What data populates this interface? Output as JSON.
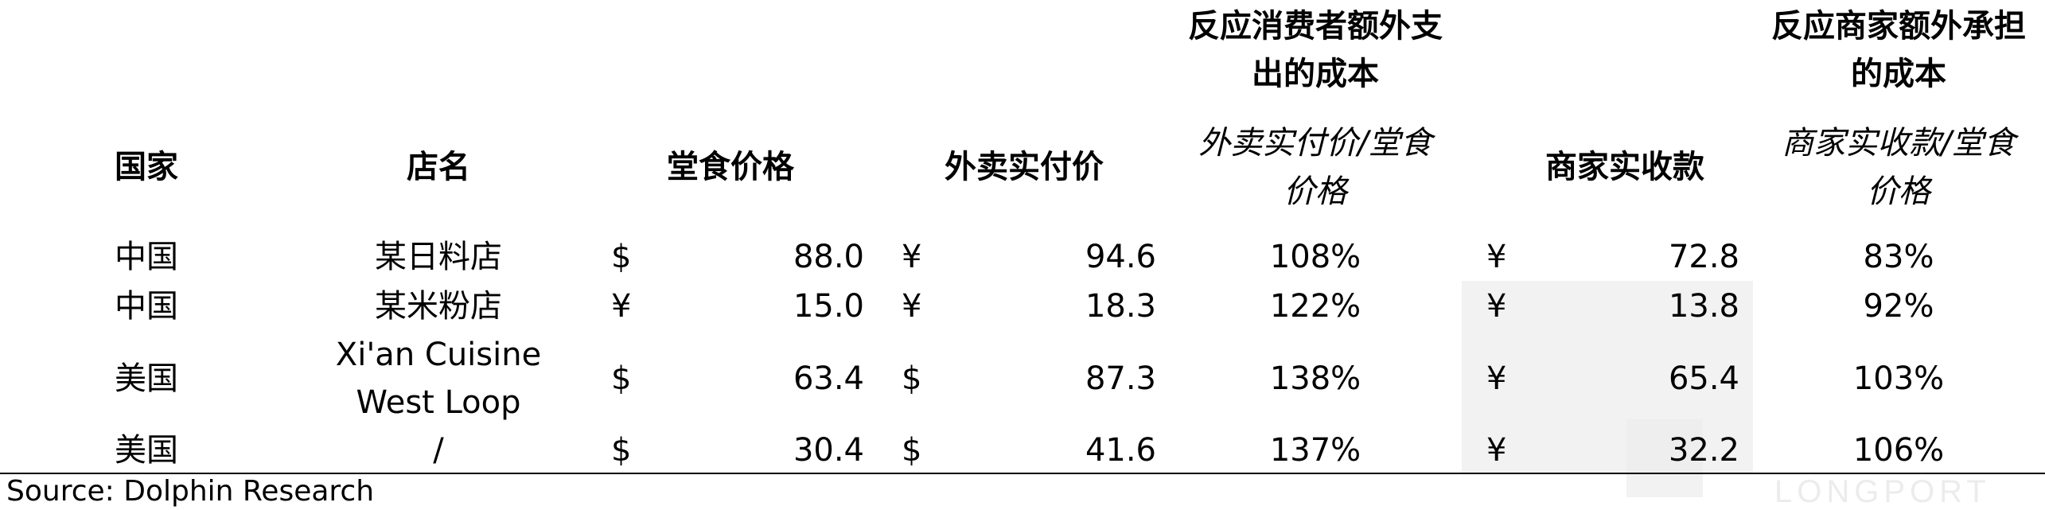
{
  "group_headers": {
    "consumer": [
      "反应消费者额外支",
      "出的成本"
    ],
    "merchant": [
      "反应商家额外承担",
      "的成本"
    ]
  },
  "columns": {
    "country": "国家",
    "store": "店名",
    "dine_in_price": "堂食价格",
    "delivery_paid": "外卖实付价",
    "ratio_consumer": [
      "外卖实付价/堂食",
      "价格"
    ],
    "merchant_received": "商家实收款",
    "ratio_merchant": [
      "商家实收款/堂食",
      "价格"
    ]
  },
  "rows": [
    {
      "country": "中国",
      "store": [
        "某日料店"
      ],
      "dine_cur": "$",
      "dine": "88.0",
      "del_cur": "¥",
      "del": "94.6",
      "ratio1": "108%",
      "rec_cur": "¥",
      "rec": "72.8",
      "ratio2": "83%"
    },
    {
      "country": "中国",
      "store": [
        "某米粉店"
      ],
      "dine_cur": "¥",
      "dine": "15.0",
      "del_cur": "¥",
      "del": "18.3",
      "ratio1": "122%",
      "rec_cur": "¥",
      "rec": "13.8",
      "ratio2": "92%"
    },
    {
      "country": "美国",
      "store": [
        "Xi'an Cuisine",
        "West Loop"
      ],
      "dine_cur": "$",
      "dine": "63.4",
      "del_cur": "$",
      "del": "87.3",
      "ratio1": "138%",
      "rec_cur": "¥",
      "rec": "65.4",
      "ratio2": "103%"
    },
    {
      "country": "美国",
      "store": [
        "/"
      ],
      "dine_cur": "$",
      "dine": "30.4",
      "del_cur": "$",
      "del": "41.6",
      "ratio1": "137%",
      "rec_cur": "¥",
      "rec": "32.2",
      "ratio2": "106%"
    }
  ],
  "source": "Source: Dolphin Research",
  "watermark": "LONGPORT"
}
